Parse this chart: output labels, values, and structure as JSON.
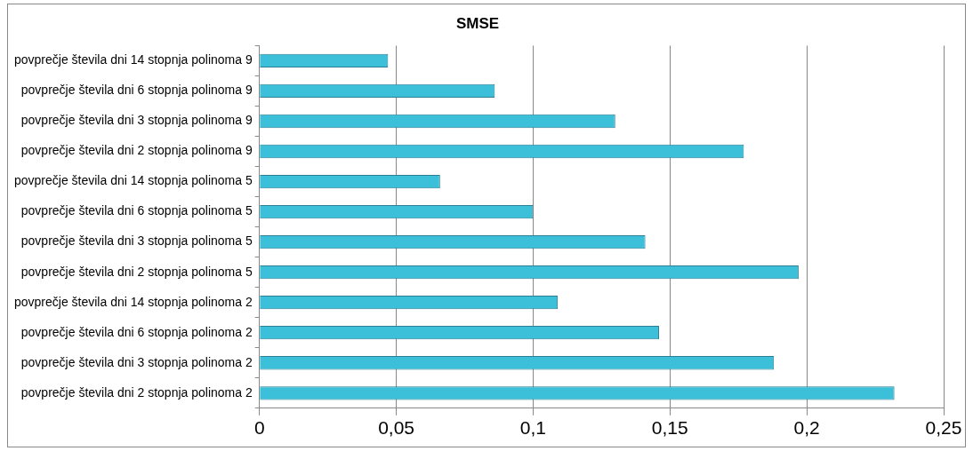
{
  "chart_data": {
    "type": "bar",
    "orientation": "horizontal",
    "title": "SMSE",
    "categories": [
      "povprečje števila dni 14 stopnja polinoma 9",
      "povprečje števila dni 6 stopnja polinoma 9",
      "povprečje števila dni 3 stopnja polinoma 9",
      "povprečje števila dni 2 stopnja polinoma 9",
      "povprečje števila dni 14 stopnja polinoma 5",
      "povprečje števila dni 6 stopnja polinoma 5",
      "povprečje števila dni 3 stopnja polinoma 5",
      "povprečje števila dni 2 stopnja polinoma 5",
      "povprečje števila dni 14 stopnja polinoma 2",
      "povprečje števila dni 6 stopnja polinoma 2",
      "povprečje števila dni 3 stopnja polinoma 2",
      "povprečje števila dni 2 stopnja polinoma 2"
    ],
    "values": [
      0.047,
      0.086,
      0.13,
      0.177,
      0.066,
      0.1,
      0.141,
      0.197,
      0.109,
      0.146,
      0.188,
      0.232
    ],
    "color": "#3cbfd8",
    "xlim": [
      0,
      0.25
    ],
    "xticks": [
      0,
      {
        "value": 0.05,
        "label": "0,05"
      },
      {
        "value": 0.1,
        "label": "0,1"
      },
      {
        "value": 0.15,
        "label": "0,15"
      },
      {
        "value": 0.2,
        "label": "0,2"
      },
      {
        "value": 0.25,
        "label": "0,25"
      }
    ],
    "grid": "x",
    "legend": false
  }
}
